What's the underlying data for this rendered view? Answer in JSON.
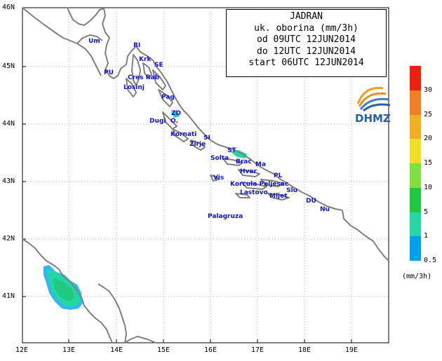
{
  "title_lines": [
    "JADRAN",
    "uk. oborina (mm/3h)",
    "od 09UTC 12JUN2014",
    "do 12UTC 12JUN2014",
    "start 06UTC 12JUN2014"
  ],
  "logo_text": "DHMZ",
  "latitude_labels": [
    "46N",
    "45N",
    "44N",
    "43N",
    "42N",
    "41N"
  ],
  "longitude_labels": [
    "12E",
    "13E",
    "14E",
    "15E",
    "16E",
    "17E",
    "18E",
    "19E"
  ],
  "places": [
    "Um",
    "RI",
    "Krk",
    "SE",
    "PU",
    "Cres Rab",
    "Losinj",
    "Pag",
    "ZD",
    "Dugi",
    "O.",
    "Kornati",
    "SI",
    "Zirje",
    "ST",
    "Solta",
    "Brac",
    "Ma",
    "Hvar",
    "PL",
    "Vis",
    "Korcula Peljesac",
    "Lastovo",
    "Slu",
    "Mljet",
    "DU",
    "Nu",
    "Palagruza"
  ],
  "legend": {
    "unit": "(mm/3h)",
    "levels": [
      "0.5",
      "1",
      "5",
      "10",
      "15",
      "20",
      "25",
      "30"
    ],
    "colors": [
      "#00a0f0",
      "#20d8a0",
      "#20c840",
      "#80e040",
      "#f0e020",
      "#f0b020",
      "#f08020",
      "#f02010"
    ]
  },
  "colors": {
    "coast": "#808080",
    "precip_light": "#20d8a0",
    "precip_moderate": "#20c880",
    "precip_edge": "#30b8f0",
    "labels": "#1010e0"
  }
}
